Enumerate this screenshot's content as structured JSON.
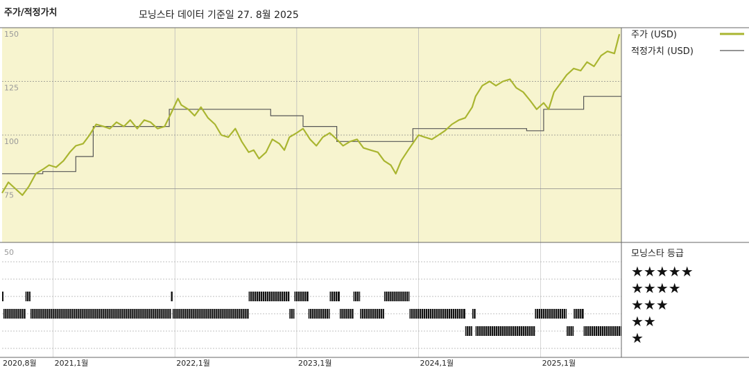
{
  "header": {
    "title": "주가/적정가치",
    "subtitle": "모닝스타 데이터 기준일 27. 8월 2025"
  },
  "chart_data": [
    {
      "type": "line",
      "ylim": [
        50,
        150
      ],
      "yticks": [
        "150",
        "125",
        "100",
        "75"
      ],
      "legend_position": "right",
      "colors": {
        "price": "#a9b530",
        "fair_value": "#555555",
        "plot_bg": "#f7f4cf"
      },
      "x_axis": {
        "start": "2020-08",
        "end": "2025-08",
        "tick_labels": [
          {
            "label": "2020,8월",
            "date": "2020-08"
          },
          {
            "label": "2021,1월",
            "date": "2021-01"
          },
          {
            "label": "2022,1월",
            "date": "2022-01"
          },
          {
            "label": "2023,1월",
            "date": "2023-01"
          },
          {
            "label": "2024,1월",
            "date": "2024-01"
          },
          {
            "label": "2025,1월",
            "date": "2025-01"
          }
        ]
      },
      "series": [
        {
          "name": "주가 (USD)",
          "points": [
            [
              "2020-08-01",
              73
            ],
            [
              "2020-08-20",
              78
            ],
            [
              "2020-09-10",
              75
            ],
            [
              "2020-10-01",
              72
            ],
            [
              "2020-10-20",
              76
            ],
            [
              "2020-11-10",
              82
            ],
            [
              "2020-12-01",
              84
            ],
            [
              "2020-12-20",
              86
            ],
            [
              "2021-01-10",
              85
            ],
            [
              "2021-02-01",
              88
            ],
            [
              "2021-02-20",
              92
            ],
            [
              "2021-03-10",
              95
            ],
            [
              "2021-04-01",
              96
            ],
            [
              "2021-04-20",
              100
            ],
            [
              "2021-05-10",
              105
            ],
            [
              "2021-06-01",
              104
            ],
            [
              "2021-06-20",
              103
            ],
            [
              "2021-07-10",
              106
            ],
            [
              "2021-08-01",
              104
            ],
            [
              "2021-08-20",
              107
            ],
            [
              "2021-09-10",
              103
            ],
            [
              "2021-10-01",
              107
            ],
            [
              "2021-10-20",
              106
            ],
            [
              "2021-11-10",
              103
            ],
            [
              "2021-12-01",
              104
            ],
            [
              "2021-12-20",
              110
            ],
            [
              "2022-01-10",
              117
            ],
            [
              "2022-01-20",
              114
            ],
            [
              "2022-02-10",
              112
            ],
            [
              "2022-03-01",
              109
            ],
            [
              "2022-03-20",
              113
            ],
            [
              "2022-04-10",
              108
            ],
            [
              "2022-05-01",
              105
            ],
            [
              "2022-05-20",
              100
            ],
            [
              "2022-06-10",
              99
            ],
            [
              "2022-07-01",
              103
            ],
            [
              "2022-07-20",
              97
            ],
            [
              "2022-08-10",
              92
            ],
            [
              "2022-08-25",
              93
            ],
            [
              "2022-09-10",
              89
            ],
            [
              "2022-10-01",
              92
            ],
            [
              "2022-10-20",
              98
            ],
            [
              "2022-11-10",
              96
            ],
            [
              "2022-11-25",
              93
            ],
            [
              "2022-12-10",
              99
            ],
            [
              "2023-01-01",
              101
            ],
            [
              "2023-01-20",
              103
            ],
            [
              "2023-02-10",
              98
            ],
            [
              "2023-03-01",
              95
            ],
            [
              "2023-03-20",
              99
            ],
            [
              "2023-04-10",
              101
            ],
            [
              "2023-05-01",
              98
            ],
            [
              "2023-05-20",
              95
            ],
            [
              "2023-06-10",
              97
            ],
            [
              "2023-07-01",
              98
            ],
            [
              "2023-07-20",
              94
            ],
            [
              "2023-08-10",
              93
            ],
            [
              "2023-09-01",
              92
            ],
            [
              "2023-09-20",
              88
            ],
            [
              "2023-10-10",
              86
            ],
            [
              "2023-10-25",
              82
            ],
            [
              "2023-11-10",
              88
            ],
            [
              "2023-12-01",
              93
            ],
            [
              "2024-01-01",
              100
            ],
            [
              "2024-01-20",
              99
            ],
            [
              "2024-02-10",
              98
            ],
            [
              "2024-03-01",
              100
            ],
            [
              "2024-03-20",
              102
            ],
            [
              "2024-04-10",
              105
            ],
            [
              "2024-05-01",
              107
            ],
            [
              "2024-05-20",
              108
            ],
            [
              "2024-06-10",
              113
            ],
            [
              "2024-06-20",
              118
            ],
            [
              "2024-07-10",
              123
            ],
            [
              "2024-08-01",
              125
            ],
            [
              "2024-08-20",
              123
            ],
            [
              "2024-09-10",
              125
            ],
            [
              "2024-10-01",
              126
            ],
            [
              "2024-10-20",
              122
            ],
            [
              "2024-11-10",
              120
            ],
            [
              "2024-12-01",
              116
            ],
            [
              "2024-12-20",
              112
            ],
            [
              "2025-01-10",
              115
            ],
            [
              "2025-01-25",
              112
            ],
            [
              "2025-02-10",
              120
            ],
            [
              "2025-03-01",
              124
            ],
            [
              "2025-03-20",
              128
            ],
            [
              "2025-04-10",
              131
            ],
            [
              "2025-05-01",
              130
            ],
            [
              "2025-05-20",
              134
            ],
            [
              "2025-06-10",
              132
            ],
            [
              "2025-07-01",
              137
            ],
            [
              "2025-07-20",
              139
            ],
            [
              "2025-08-10",
              138
            ],
            [
              "2025-08-25",
              147
            ]
          ]
        },
        {
          "name": "적정가치 (USD)",
          "points": [
            [
              "2020-08-01",
              82
            ],
            [
              "2020-12-01",
              82
            ],
            [
              "2020-12-01",
              83
            ],
            [
              "2021-03-10",
              83
            ],
            [
              "2021-03-10",
              90
            ],
            [
              "2021-05-01",
              90
            ],
            [
              "2021-05-01",
              104
            ],
            [
              "2021-12-15",
              104
            ],
            [
              "2021-12-15",
              112
            ],
            [
              "2022-10-15",
              112
            ],
            [
              "2022-10-15",
              109
            ],
            [
              "2023-01-20",
              109
            ],
            [
              "2023-01-20",
              104
            ],
            [
              "2023-05-01",
              104
            ],
            [
              "2023-05-01",
              97
            ],
            [
              "2023-12-15",
              97
            ],
            [
              "2023-12-15",
              103
            ],
            [
              "2024-11-20",
              103
            ],
            [
              "2024-11-20",
              102
            ],
            [
              "2025-01-10",
              102
            ],
            [
              "2025-01-10",
              112
            ],
            [
              "2025-05-10",
              112
            ],
            [
              "2025-05-10",
              118
            ],
            [
              "2025-08-31",
              118
            ]
          ]
        }
      ]
    },
    {
      "type": "bar",
      "title": "모닝스타 등급",
      "rating_labels": [
        "★★★★★",
        "★★★★",
        "★★★",
        "★★",
        "★"
      ],
      "ytick": "50",
      "rating_history": [
        [
          "2020-08-01",
          "2020-08-05",
          4
        ],
        [
          "2020-08-05",
          "2020-10-10",
          3
        ],
        [
          "2020-10-10",
          "2020-10-25",
          4
        ],
        [
          "2020-10-25",
          "2021-12-20",
          3
        ],
        [
          "2021-12-20",
          "2021-12-25",
          4
        ],
        [
          "2021-12-25",
          "2022-08-10",
          3
        ],
        [
          "2022-08-10",
          "2022-12-10",
          4
        ],
        [
          "2022-12-10",
          "2022-12-25",
          3
        ],
        [
          "2022-12-25",
          "2023-02-05",
          4
        ],
        [
          "2023-02-05",
          "2023-04-10",
          3
        ],
        [
          "2023-04-10",
          "2023-05-10",
          4
        ],
        [
          "2023-05-10",
          "2023-06-20",
          3
        ],
        [
          "2023-06-20",
          "2023-07-10",
          4
        ],
        [
          "2023-07-10",
          "2023-09-20",
          3
        ],
        [
          "2023-09-20",
          "2023-12-05",
          4
        ],
        [
          "2023-12-05",
          "2024-05-20",
          3
        ],
        [
          "2024-05-20",
          "2024-06-10",
          2
        ],
        [
          "2024-06-10",
          "2024-06-20",
          3
        ],
        [
          "2024-06-20",
          "2024-12-15",
          2
        ],
        [
          "2024-12-15",
          "2025-03-20",
          3
        ],
        [
          "2025-03-20",
          "2025-04-10",
          2
        ],
        [
          "2025-04-10",
          "2025-05-10",
          3
        ],
        [
          "2025-05-10",
          "2025-08-31",
          2
        ]
      ]
    }
  ]
}
